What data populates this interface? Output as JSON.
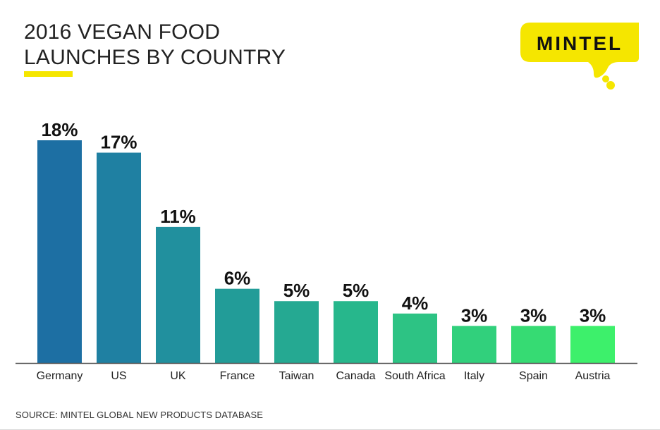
{
  "header": {
    "title_line1": "2016 VEGAN FOOD",
    "title_line2": "LAUNCHES BY COUNTRY"
  },
  "logo": {
    "text": "MINTEL"
  },
  "colors": {
    "accent_yellow": "#f5e600",
    "title_text": "#222222",
    "axis": "#555555",
    "bars": [
      "#1d6fa3",
      "#1f80a2",
      "#21909e",
      "#229c98",
      "#25a992",
      "#27b78c",
      "#2dc384",
      "#31d07c",
      "#36db73",
      "#3df06b"
    ]
  },
  "chart_data": {
    "type": "bar",
    "title": "2016 VEGAN FOOD LAUNCHES BY COUNTRY",
    "categories": [
      "Germany",
      "US",
      "UK",
      "France",
      "Taiwan",
      "Canada",
      "South Africa",
      "Italy",
      "Spain",
      "Austria"
    ],
    "values": [
      18,
      17,
      11,
      6,
      5,
      5,
      4,
      3,
      3,
      3
    ],
    "value_labels": [
      "18%",
      "17%",
      "11%",
      "6%",
      "5%",
      "5%",
      "4%",
      "3%",
      "3%",
      "3%"
    ],
    "unit": "%",
    "ylim": [
      0,
      18
    ],
    "grid": false,
    "legend": "none"
  },
  "footer": {
    "source": "SOURCE: MINTEL GLOBAL NEW PRODUCTS DATABASE"
  }
}
